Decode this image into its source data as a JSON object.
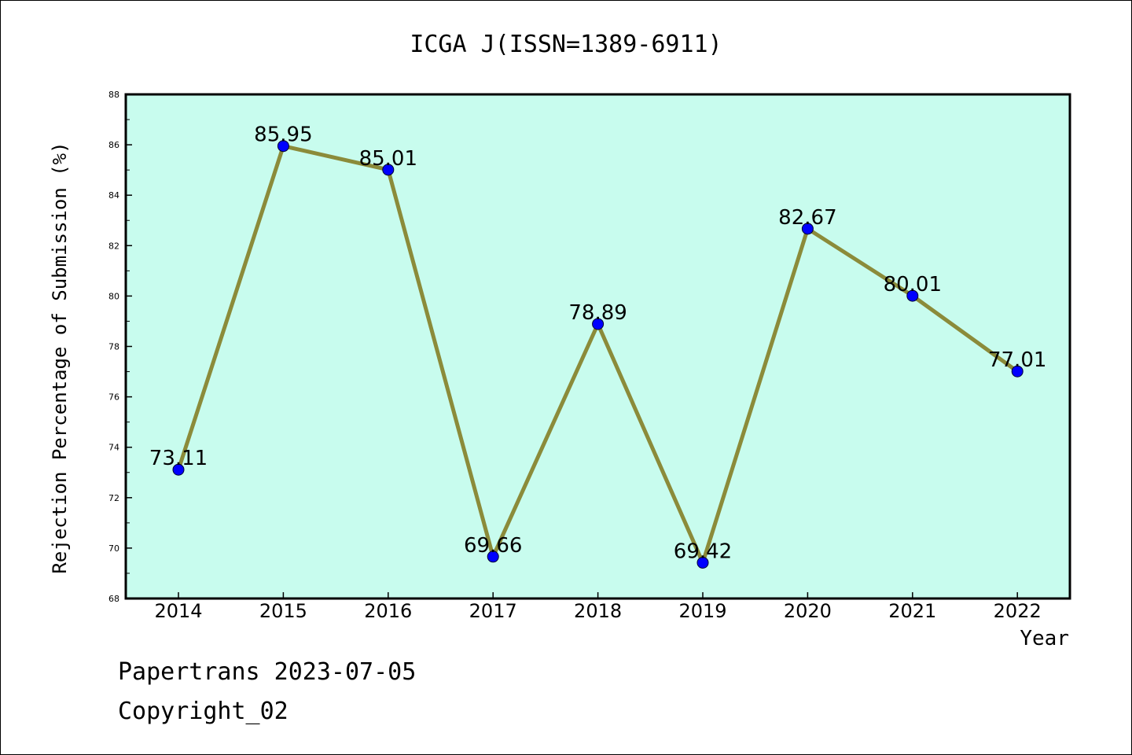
{
  "chart_data": {
    "type": "line",
    "title": "ICGA J(ISSN=1389-6911)",
    "xlabel": "Year",
    "ylabel": "Rejection Percentage of Submission (%)",
    "categories": [
      "2014",
      "2015",
      "2016",
      "2017",
      "2018",
      "2019",
      "2020",
      "2021",
      "2022"
    ],
    "values": [
      73.11,
      85.95,
      85.01,
      69.66,
      78.89,
      69.42,
      82.67,
      80.01,
      77.01
    ],
    "data_labels": [
      "73.11",
      "85.95",
      "85.01",
      "69.66",
      "78.89",
      "69.42",
      "82.67",
      "80.01",
      "77.01"
    ],
    "ylim": [
      68,
      88
    ],
    "yticks": [
      68,
      70,
      72,
      74,
      76,
      78,
      80,
      82,
      84,
      86,
      88
    ],
    "grid": false,
    "plot_background": "#c8fcee",
    "line_color": "#8b8b3a",
    "marker_color": "#0000ff"
  },
  "footer": {
    "line1": "Papertrans 2023-07-05",
    "line2": "Copyright_02"
  }
}
